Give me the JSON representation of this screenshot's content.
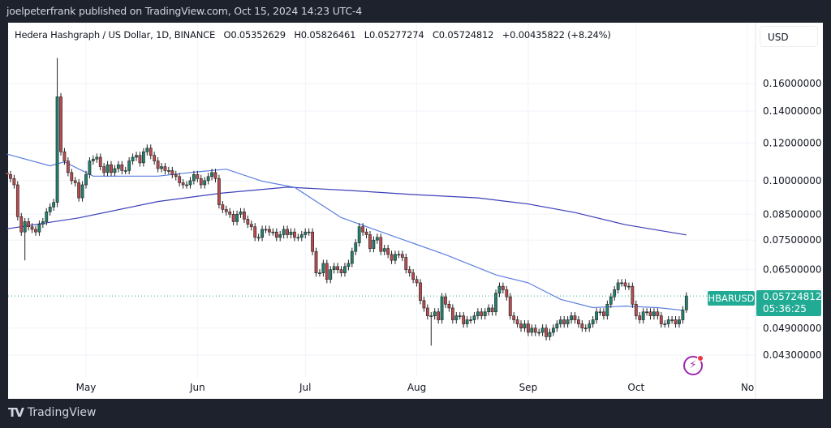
{
  "header": {
    "published": "joelpeterfrank published on TradingView.com, Oct 15, 2024 14:23 UTC-4"
  },
  "legend": {
    "symbol": "Hedera Hashgraph / US Dollar, 1D, BINANCE",
    "open": "O0.05352629",
    "high": "H0.05826461",
    "low": "L0.05277274",
    "close": "C0.05724812",
    "change": "+0.00435822 (+8.24%)"
  },
  "currency_button": "USD",
  "price_label": {
    "symbol": "HBARUSD",
    "price": "0.05724812",
    "countdown": "05:36:25"
  },
  "footer": {
    "brand": "TradingView"
  },
  "icons": {
    "alert": "lightning-bolt-icon",
    "logo": "tradingview-logo-icon"
  },
  "colors": {
    "up": "#22806e",
    "down": "#b94a4f",
    "ma_fast": "#5b7fe0",
    "ma_slow": "#3c3fb8",
    "last_price": "#22ab94"
  },
  "chart_data": {
    "type": "candlestick",
    "scale": "log",
    "grid": true,
    "ylim": [
      0.04,
      0.2
    ],
    "y_ticks": [
      "0.16000000",
      "0.14000000",
      "0.12000000",
      "0.10000000",
      "0.08500000",
      "0.07500000",
      "0.06500000",
      "0.04900000",
      "0.04300000"
    ],
    "x_ticks": [
      {
        "label": "May",
        "date": "2024-05-01"
      },
      {
        "label": "Jun",
        "date": "2024-06-01"
      },
      {
        "label": "Jul",
        "date": "2024-07-01"
      },
      {
        "label": "Aug",
        "date": "2024-08-01"
      },
      {
        "label": "Sep",
        "date": "2024-09-01"
      },
      {
        "label": "Oct",
        "date": "2024-10-01"
      },
      {
        "label": "No",
        "date": "2024-11-01"
      }
    ],
    "start_date": "2024-04-09",
    "first_open": 0.104,
    "closes": [
      0.103,
      0.101,
      0.098,
      0.084,
      0.078,
      0.082,
      0.08,
      0.079,
      0.078,
      0.081,
      0.082,
      0.086,
      0.088,
      0.09,
      0.15,
      0.115,
      0.11,
      0.104,
      0.1,
      0.099,
      0.092,
      0.098,
      0.103,
      0.11,
      0.111,
      0.112,
      0.107,
      0.104,
      0.108,
      0.104,
      0.106,
      0.108,
      0.105,
      0.105,
      0.11,
      0.112,
      0.113,
      0.109,
      0.115,
      0.117,
      0.113,
      0.11,
      0.106,
      0.107,
      0.105,
      0.105,
      0.103,
      0.102,
      0.099,
      0.098,
      0.098,
      0.1,
      0.103,
      0.101,
      0.098,
      0.1,
      0.102,
      0.104,
      0.101,
      0.089,
      0.087,
      0.086,
      0.085,
      0.082,
      0.085,
      0.086,
      0.083,
      0.081,
      0.08,
      0.076,
      0.076,
      0.079,
      0.079,
      0.078,
      0.078,
      0.076,
      0.077,
      0.079,
      0.077,
      0.078,
      0.076,
      0.076,
      0.077,
      0.078,
      0.078,
      0.071,
      0.064,
      0.064,
      0.067,
      0.062,
      0.065,
      0.066,
      0.065,
      0.064,
      0.066,
      0.067,
      0.071,
      0.074,
      0.08,
      0.078,
      0.077,
      0.072,
      0.075,
      0.076,
      0.071,
      0.072,
      0.07,
      0.068,
      0.07,
      0.07,
      0.069,
      0.065,
      0.064,
      0.062,
      0.061,
      0.056,
      0.054,
      0.052,
      0.052,
      0.053,
      0.051,
      0.057,
      0.055,
      0.054,
      0.051,
      0.052,
      0.052,
      0.05,
      0.051,
      0.051,
      0.052,
      0.053,
      0.052,
      0.053,
      0.054,
      0.053,
      0.058,
      0.06,
      0.059,
      0.057,
      0.052,
      0.051,
      0.05,
      0.049,
      0.05,
      0.048,
      0.049,
      0.048,
      0.048,
      0.049,
      0.047,
      0.048,
      0.049,
      0.05,
      0.051,
      0.05,
      0.051,
      0.052,
      0.051,
      0.05,
      0.049,
      0.049,
      0.05,
      0.051,
      0.053,
      0.053,
      0.052,
      0.055,
      0.057,
      0.059,
      0.061,
      0.061,
      0.06,
      0.06,
      0.055,
      0.052,
      0.051,
      0.053,
      0.053,
      0.052,
      0.053,
      0.052,
      0.05,
      0.05,
      0.051,
      0.051,
      0.05,
      0.051,
      0.05352629,
      0.05724812
    ],
    "notable": [
      {
        "date": "2024-04-23",
        "high": 0.181,
        "low": 0.088
      },
      {
        "date": "2024-04-14",
        "low": 0.068
      },
      {
        "date": "2024-08-05",
        "low": 0.045
      },
      {
        "date": "2024-10-15",
        "open": 0.05352629,
        "high": 0.05826461,
        "low": 0.05277274,
        "close": 0.05724812
      }
    ],
    "ma_fast": {
      "dates": [
        "2024-04-09",
        "2024-04-21",
        "2024-04-25",
        "2024-05-03",
        "2024-05-21",
        "2024-05-30",
        "2024-06-09",
        "2024-06-19",
        "2024-06-28",
        "2024-07-11",
        "2024-07-27",
        "2024-08-09",
        "2024-08-23",
        "2024-09-01",
        "2024-09-10",
        "2024-09-19",
        "2024-09-28",
        "2024-10-07",
        "2024-10-14"
      ],
      "values": [
        0.1137,
        0.1074,
        0.1095,
        0.1022,
        0.1022,
        0.104,
        0.1057,
        0.0997,
        0.0968,
        0.0836,
        0.0757,
        0.0699,
        0.0634,
        0.061,
        0.0563,
        0.0541,
        0.0545,
        0.0541,
        0.0534
      ]
    },
    "ma_slow": {
      "dates": [
        "2024-04-09",
        "2024-04-29",
        "2024-05-21",
        "2024-06-08",
        "2024-06-26",
        "2024-07-13",
        "2024-07-31",
        "2024-08-18",
        "2024-09-01",
        "2024-09-14",
        "2024-09-28",
        "2024-10-15"
      ],
      "values": [
        0.0792,
        0.0835,
        0.0904,
        0.0942,
        0.0969,
        0.0954,
        0.0935,
        0.092,
        0.0893,
        0.0857,
        0.0808,
        0.0769
      ]
    },
    "last_price": 0.05724812
  }
}
